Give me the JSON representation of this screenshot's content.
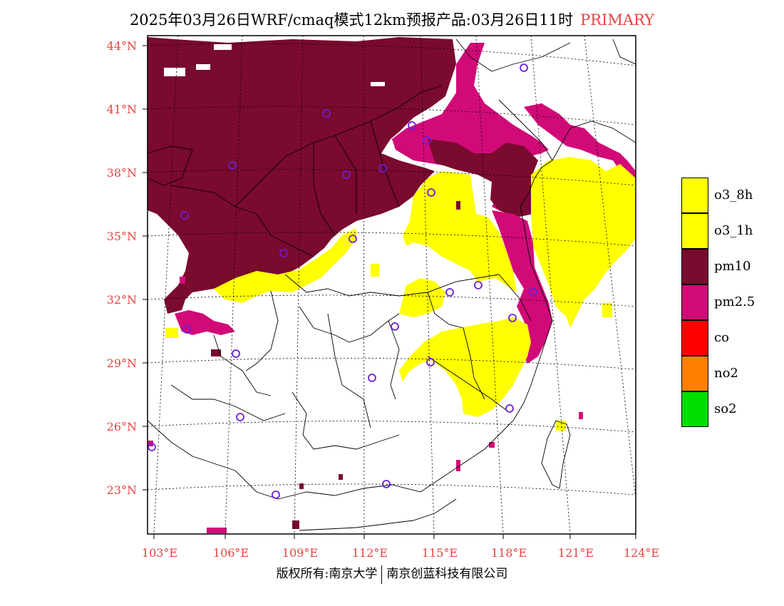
{
  "title": "2025年03月26日WRF/cmaq模式12km预报产品:03月26日11时",
  "title_tag": "PRIMARY",
  "colors": {
    "o3_8h": "#ffff00",
    "o3_1h": "#ffff00",
    "pm10": "#7a0a2e",
    "pm2_5": "#d10a78",
    "co": "#ff0000",
    "no2": "#ff8000",
    "so2": "#00dd00",
    "station": "#6a1fd8",
    "axis_label": "#e8423f"
  },
  "lat_labels": [
    "44°N",
    "41°N",
    "38°N",
    "35°N",
    "32°N",
    "29°N",
    "26°N",
    "23°N"
  ],
  "lon_labels": [
    "103°E",
    "106°E",
    "109°E",
    "112°E",
    "115°E",
    "118°E",
    "121°E",
    "124°E"
  ],
  "legend": [
    {
      "label": "o3_8h",
      "color": "#ffff00"
    },
    {
      "label": "o3_1h",
      "color": "#ffff00"
    },
    {
      "label": "pm10",
      "color": "#7a0a2e"
    },
    {
      "label": "pm2.5",
      "color": "#d10a78"
    },
    {
      "label": "co",
      "color": "#ff0000"
    },
    {
      "label": "no2",
      "color": "#ff8000"
    },
    {
      "label": "so2",
      "color": "#00dd00"
    }
  ],
  "footer": {
    "left": "版权所有:南京大学",
    "right": "南京创蓝科技有限公司"
  }
}
